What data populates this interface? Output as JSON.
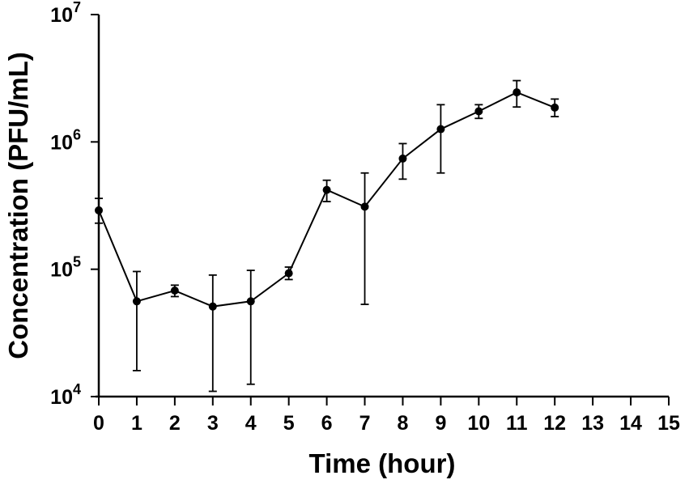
{
  "chart_data": {
    "type": "line",
    "title": "",
    "xlabel": "Time (hour)",
    "ylabel": "Concentration (PFU/mL)",
    "xlim": [
      0,
      15
    ],
    "ylim": [
      10000,
      10000000
    ],
    "y_scale": "log",
    "grid": false,
    "x_ticks": [
      "0",
      "1",
      "2",
      "3",
      "4",
      "5",
      "6",
      "7",
      "8",
      "9",
      "10",
      "11",
      "12",
      "13",
      "14",
      "15"
    ],
    "y_ticks": [
      {
        "value": 10000,
        "base": "10",
        "exp": "4"
      },
      {
        "value": 100000,
        "base": "10",
        "exp": "5"
      },
      {
        "value": 1000000,
        "base": "10",
        "exp": "6"
      },
      {
        "value": 10000000,
        "base": "10",
        "exp": "7"
      }
    ],
    "series": [
      {
        "color": "#000000",
        "x": [
          0,
          1,
          2,
          3,
          4,
          5,
          6,
          7,
          8,
          9,
          10,
          11,
          12
        ],
        "y": [
          290000,
          56000,
          68000,
          51000,
          56000,
          93000,
          420000,
          310000,
          740000,
          1260000,
          1740000,
          2450000,
          1860000
        ],
        "err_low": [
          230000,
          16000,
          61000,
          11000,
          12500,
          83000,
          340000,
          53000,
          510000,
          570000,
          1530000,
          1880000,
          1580000
        ],
        "err_high": [
          360000,
          96000,
          75000,
          90000,
          98000,
          104000,
          500000,
          570000,
          970000,
          1960000,
          1960000,
          3030000,
          2170000
        ]
      }
    ]
  }
}
